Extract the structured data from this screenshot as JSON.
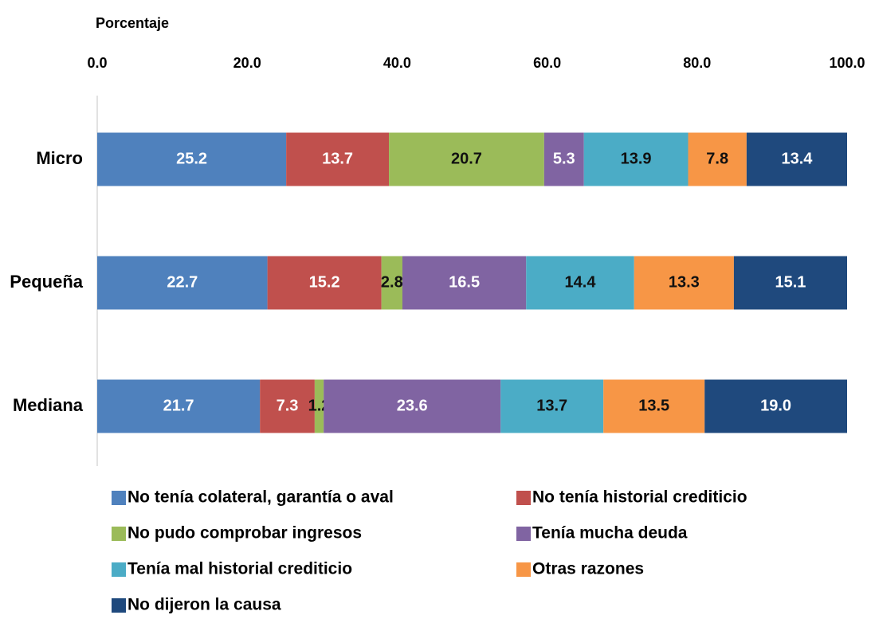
{
  "chart_data": {
    "type": "stacked-barh",
    "xlabel": "Porcentaje",
    "categories": [
      "Micro",
      "Pequeña",
      "Mediana"
    ],
    "xlim": [
      0,
      100
    ],
    "xticks": [
      {
        "value": 0,
        "label": "0.0"
      },
      {
        "value": 20,
        "label": "20.0"
      },
      {
        "value": 40,
        "label": "40.0"
      },
      {
        "value": 60,
        "label": "60.0"
      },
      {
        "value": 80,
        "label": "80.0"
      },
      {
        "value": 100,
        "label": "100.0"
      }
    ],
    "series": [
      {
        "name": "No tenía colateral, garantía o aval",
        "color": "#4f81bd",
        "values": [
          25.2,
          22.7,
          21.7
        ],
        "value_labels": [
          "25.2",
          "22.7",
          "21.7"
        ]
      },
      {
        "name": "No tenía historial crediticio",
        "color": "#c0504d",
        "values": [
          13.7,
          15.2,
          7.3
        ],
        "value_labels": [
          "13.7",
          "15.2",
          "7.3"
        ]
      },
      {
        "name": "No pudo comprobar ingresos",
        "color": "#9bbb59",
        "values": [
          20.7,
          2.8,
          1.2
        ],
        "value_labels": [
          "20.7",
          "2.8",
          "1.2"
        ]
      },
      {
        "name": "Tenía mucha deuda",
        "color": "#8064a2",
        "values": [
          5.3,
          16.5,
          23.6
        ],
        "value_labels": [
          "5.3",
          "16.5",
          "23.6"
        ]
      },
      {
        "name": "Tenía mal historial crediticio",
        "color": "#4bacc6",
        "values": [
          13.9,
          14.4,
          13.7
        ],
        "value_labels": [
          "13.9",
          "14.4",
          "13.7"
        ]
      },
      {
        "name": "Otras razones",
        "color": "#f79646",
        "values": [
          7.8,
          13.3,
          13.5
        ],
        "value_labels": [
          "7.8",
          "13.3",
          "13.5"
        ]
      },
      {
        "name": "No dijeron la causa",
        "color": "#1f497d",
        "values": [
          13.4,
          15.1,
          19.0
        ],
        "value_labels": [
          "13.4",
          "15.1",
          "19.0"
        ]
      }
    ]
  }
}
